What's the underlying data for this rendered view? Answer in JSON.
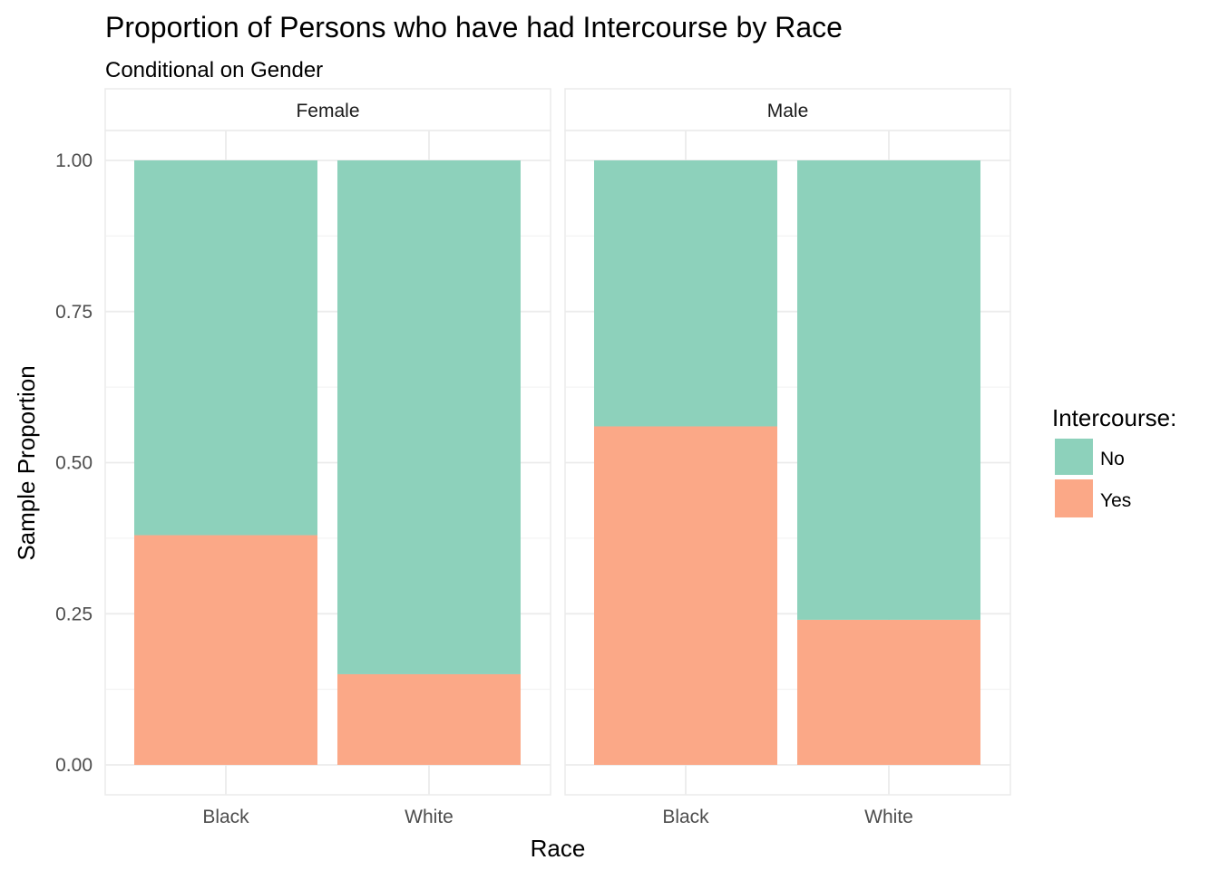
{
  "chart_data": {
    "type": "bar",
    "title": "Proportion of Persons who have had Intercourse by Race",
    "subtitle": "Conditional on Gender",
    "xlabel": "Race",
    "ylabel": "Sample Proportion",
    "ylim": [
      0,
      1
    ],
    "yticks": [
      "0.00",
      "0.25",
      "0.50",
      "0.75",
      "1.00"
    ],
    "ytick_values": [
      0,
      0.25,
      0.5,
      0.75,
      1.0
    ],
    "grid": true,
    "stacked": true,
    "categories": [
      "Black",
      "White"
    ],
    "facets": [
      {
        "name": "Female",
        "series": [
          {
            "name": "No",
            "values": [
              0.62,
              0.85
            ]
          },
          {
            "name": "Yes",
            "values": [
              0.38,
              0.15
            ]
          }
        ]
      },
      {
        "name": "Male",
        "series": [
          {
            "name": "No",
            "values": [
              0.44,
              0.76
            ]
          },
          {
            "name": "Yes",
            "values": [
              0.56,
              0.24
            ]
          }
        ]
      }
    ],
    "legend": {
      "title": "Intercourse:",
      "position": "right",
      "entries": [
        {
          "label": "No",
          "color": "#8dd1bb"
        },
        {
          "label": "Yes",
          "color": "#fba887"
        }
      ]
    }
  }
}
